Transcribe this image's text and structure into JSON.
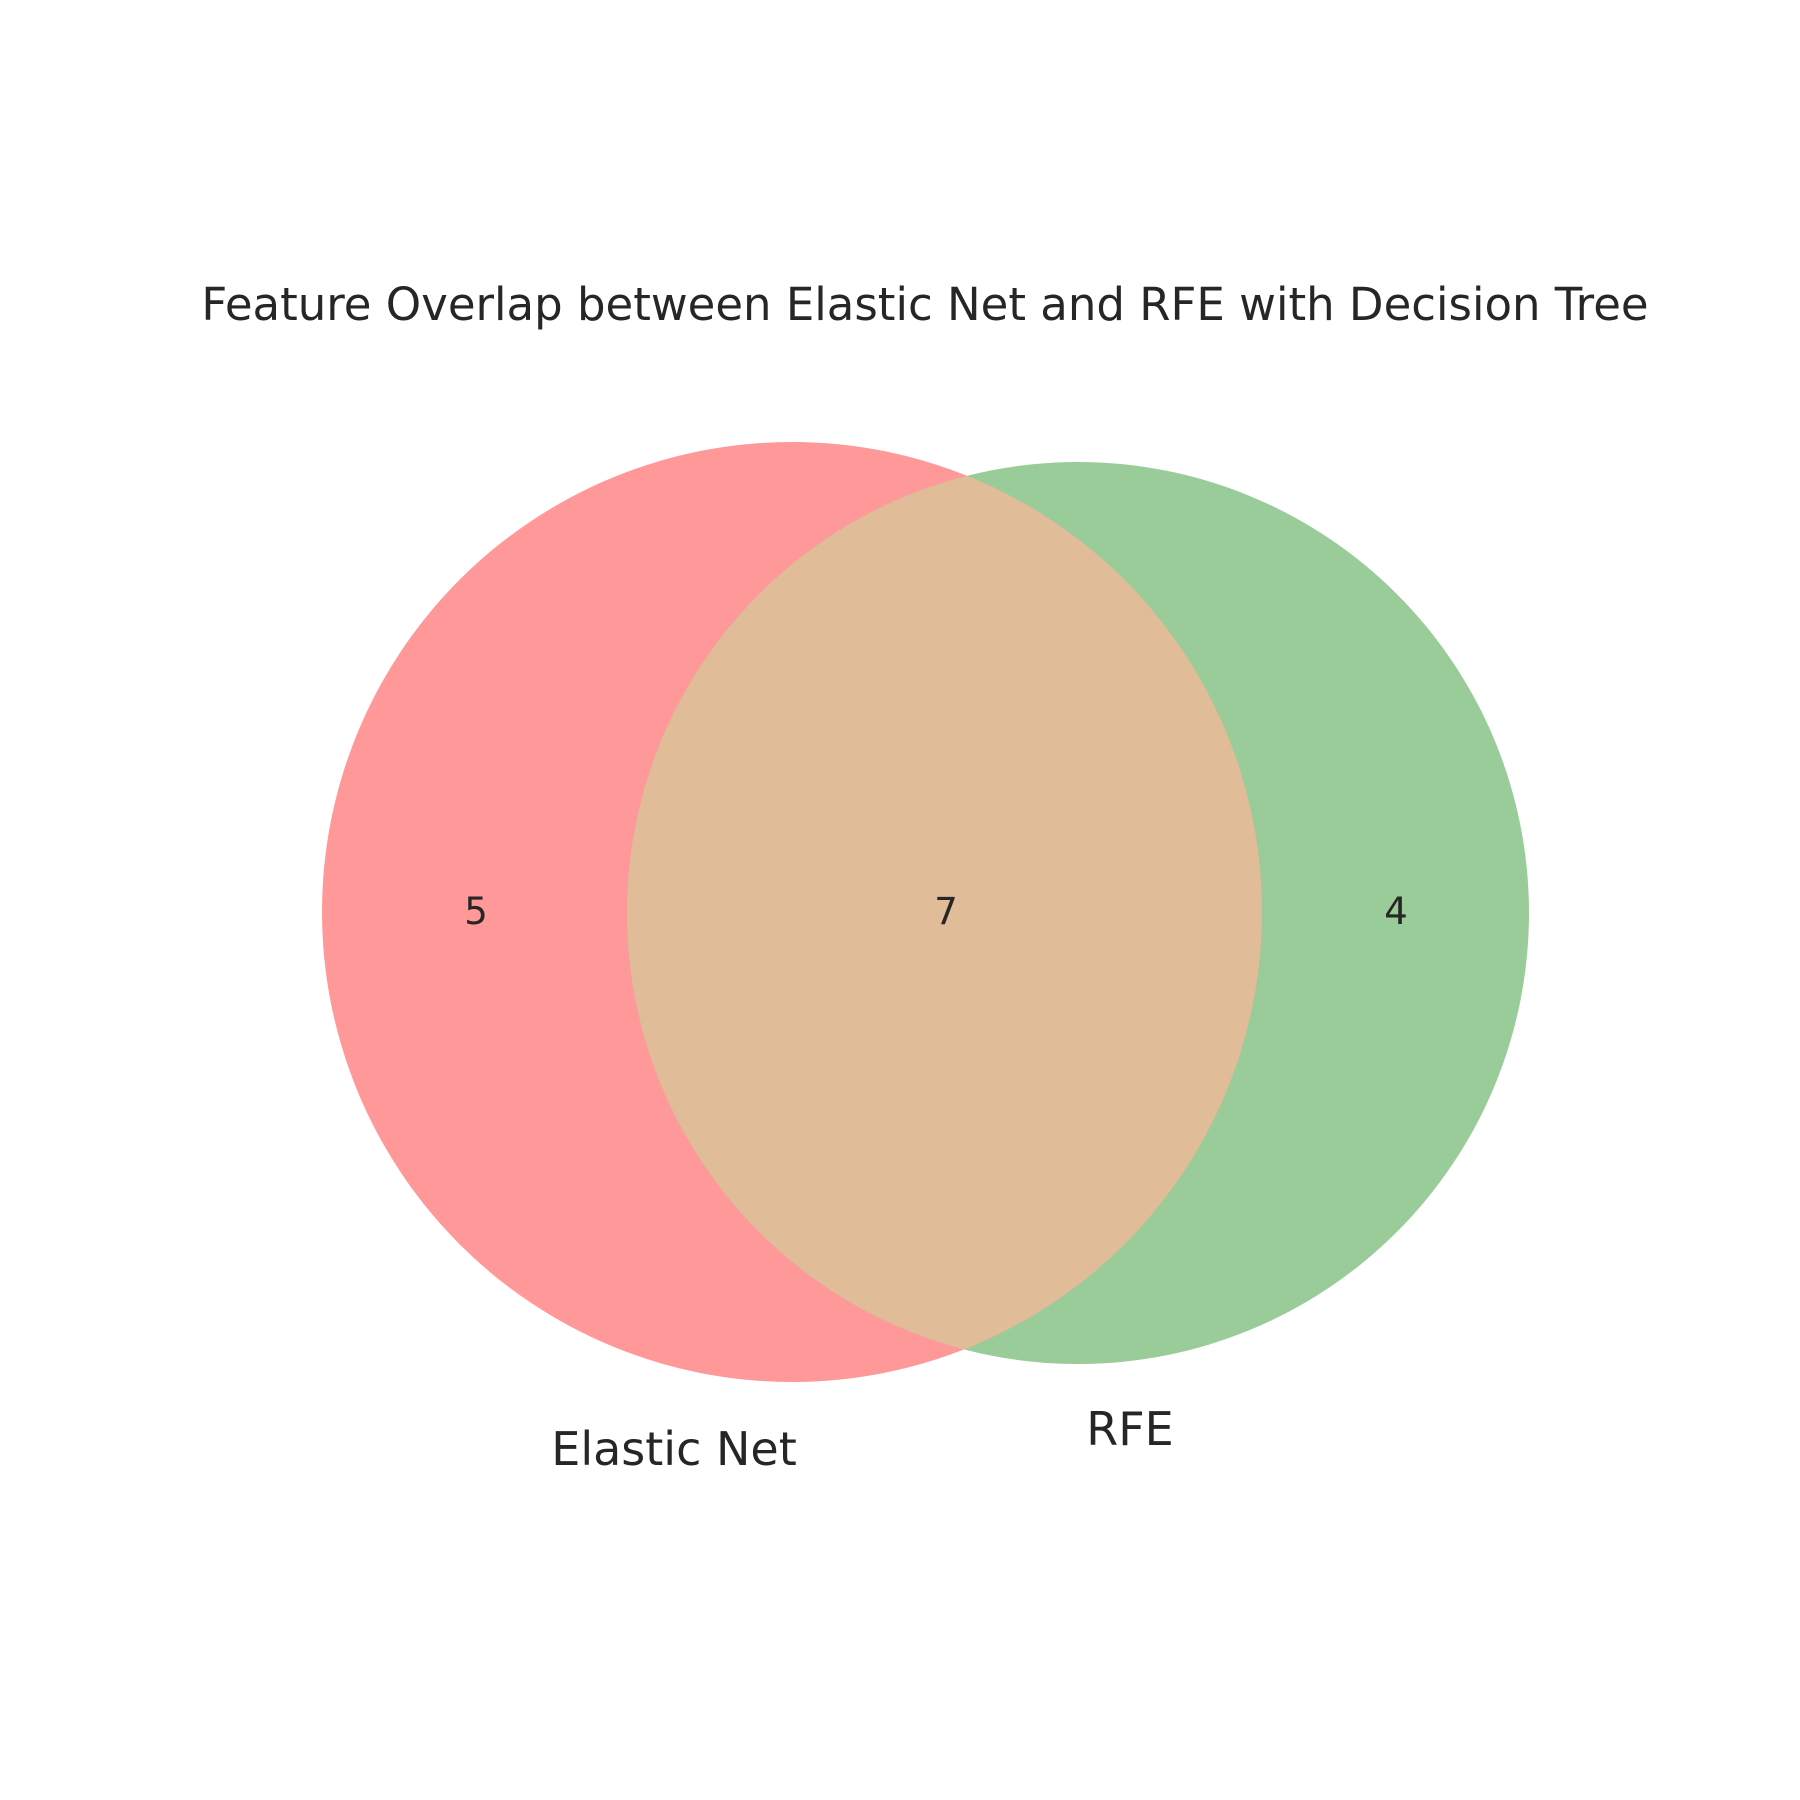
{
  "diagram": {
    "type": "venn2",
    "title": "Feature Overlap between Elastic Net and RFE with Decision Tree",
    "sets": [
      {
        "name": "Elastic Net",
        "color": "#ff9999"
      },
      {
        "name": "RFE",
        "color": "#99cc99"
      }
    ],
    "intersection_color": "#e0bc99",
    "counts": {
      "only_left": "5",
      "both": "7",
      "only_right": "4"
    }
  }
}
